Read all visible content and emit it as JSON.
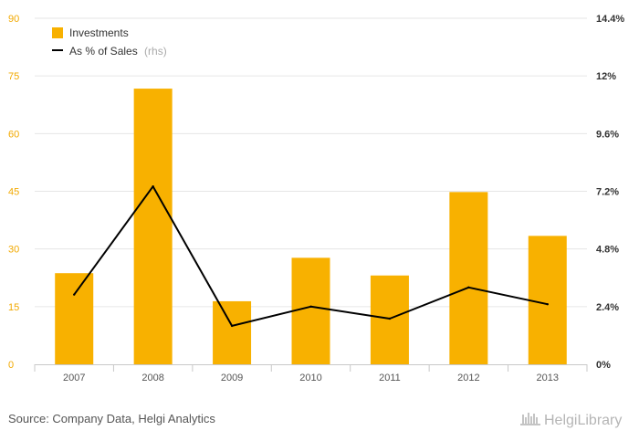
{
  "chart_data": {
    "type": "bar",
    "categories": [
      "2007",
      "2008",
      "2009",
      "2010",
      "2011",
      "2012",
      "2013"
    ],
    "series": [
      {
        "name": "Investments",
        "type": "bar",
        "axis": "left",
        "values": [
          23.7,
          71.7,
          16.4,
          27.7,
          23.1,
          44.8,
          33.4
        ]
      },
      {
        "name": "As % of Sales",
        "name_suffix": "(rhs)",
        "type": "line",
        "axis": "right",
        "values": [
          2.9,
          7.4,
          1.6,
          2.4,
          1.9,
          3.2,
          2.5
        ]
      }
    ],
    "ylim": [
      0,
      90
    ],
    "yticks": [
      "0",
      "15",
      "30",
      "45",
      "60",
      "75",
      "90"
    ],
    "y2lim": [
      0,
      14.4
    ],
    "y2ticks": [
      "0%",
      "2.4%",
      "4.8%",
      "7.2%",
      "9.6%",
      "12%",
      "14.4%"
    ],
    "grid": true,
    "legend_position": "top-left",
    "colors": {
      "bar": "#f8b100",
      "line": "#000000",
      "grid": "#e6e6e6"
    }
  },
  "footer": {
    "source": "Source: Company Data, Helgi Analytics",
    "brand": "HelgiLibrary"
  }
}
